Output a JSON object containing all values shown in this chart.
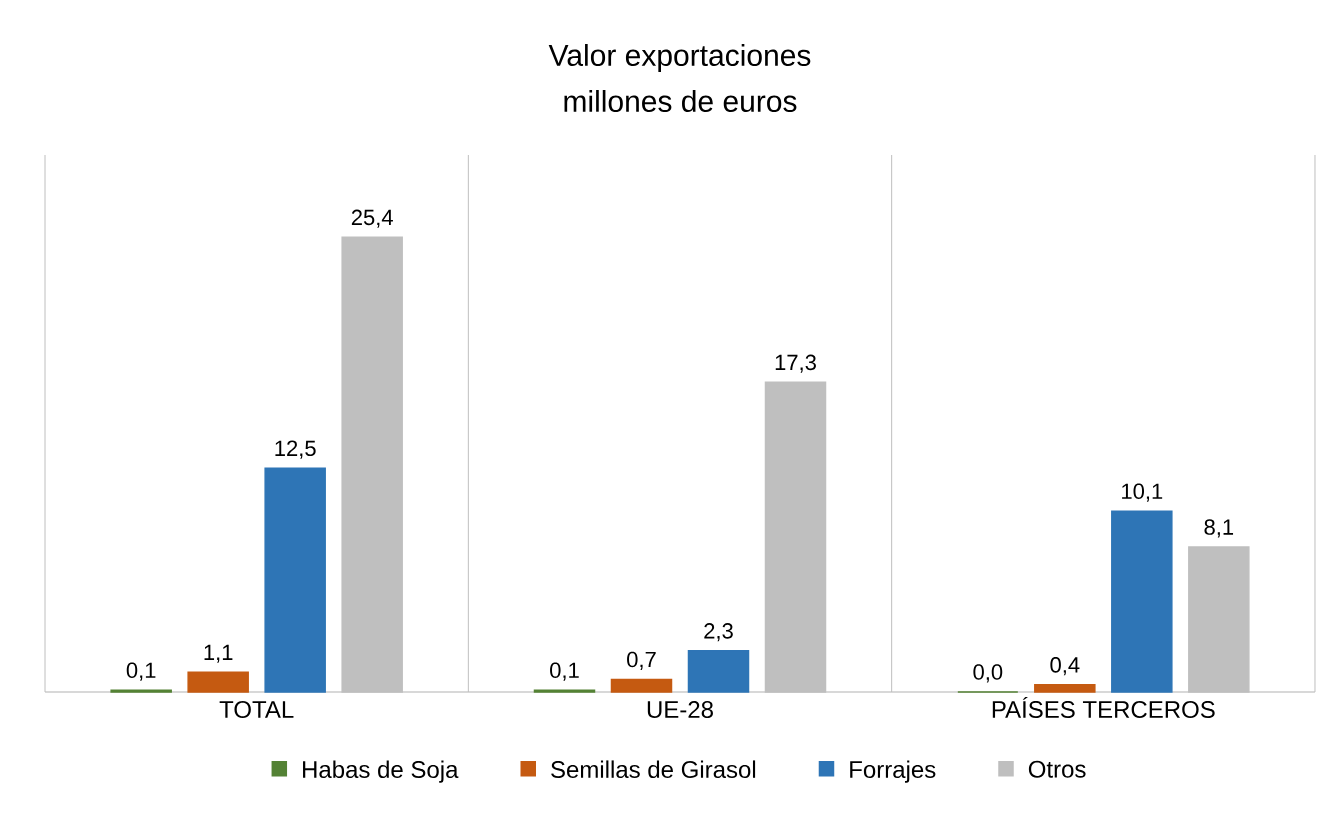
{
  "chart_data": {
    "type": "bar",
    "title": "Valor exportaciones",
    "subtitle": "millones de euros",
    "categories": [
      "TOTAL",
      "UE-28",
      "PAÍSES TERCEROS"
    ],
    "series": [
      {
        "name": "Habas de Soja",
        "color": "#548235",
        "values": [
          0.1,
          0.1,
          0.0
        ],
        "value_labels": [
          "0,1",
          "0,1",
          "0,0"
        ]
      },
      {
        "name": "Semillas de Girasol",
        "color": "#c55a11",
        "values": [
          1.1,
          0.7,
          0.4
        ],
        "value_labels": [
          "1,1",
          "0,7",
          "0,4"
        ]
      },
      {
        "name": "Forrajes",
        "color": "#2e75b6",
        "values": [
          12.5,
          2.3,
          10.1
        ],
        "value_labels": [
          "12,5",
          "2,3",
          "10,1"
        ]
      },
      {
        "name": "Otros",
        "color": "#bfbfbf",
        "values": [
          25.4,
          17.3,
          8.1
        ],
        "value_labels": [
          "25,4",
          "17,3",
          "8,1"
        ]
      }
    ],
    "ylim": [
      0,
      30
    ],
    "legend": "bottom"
  }
}
